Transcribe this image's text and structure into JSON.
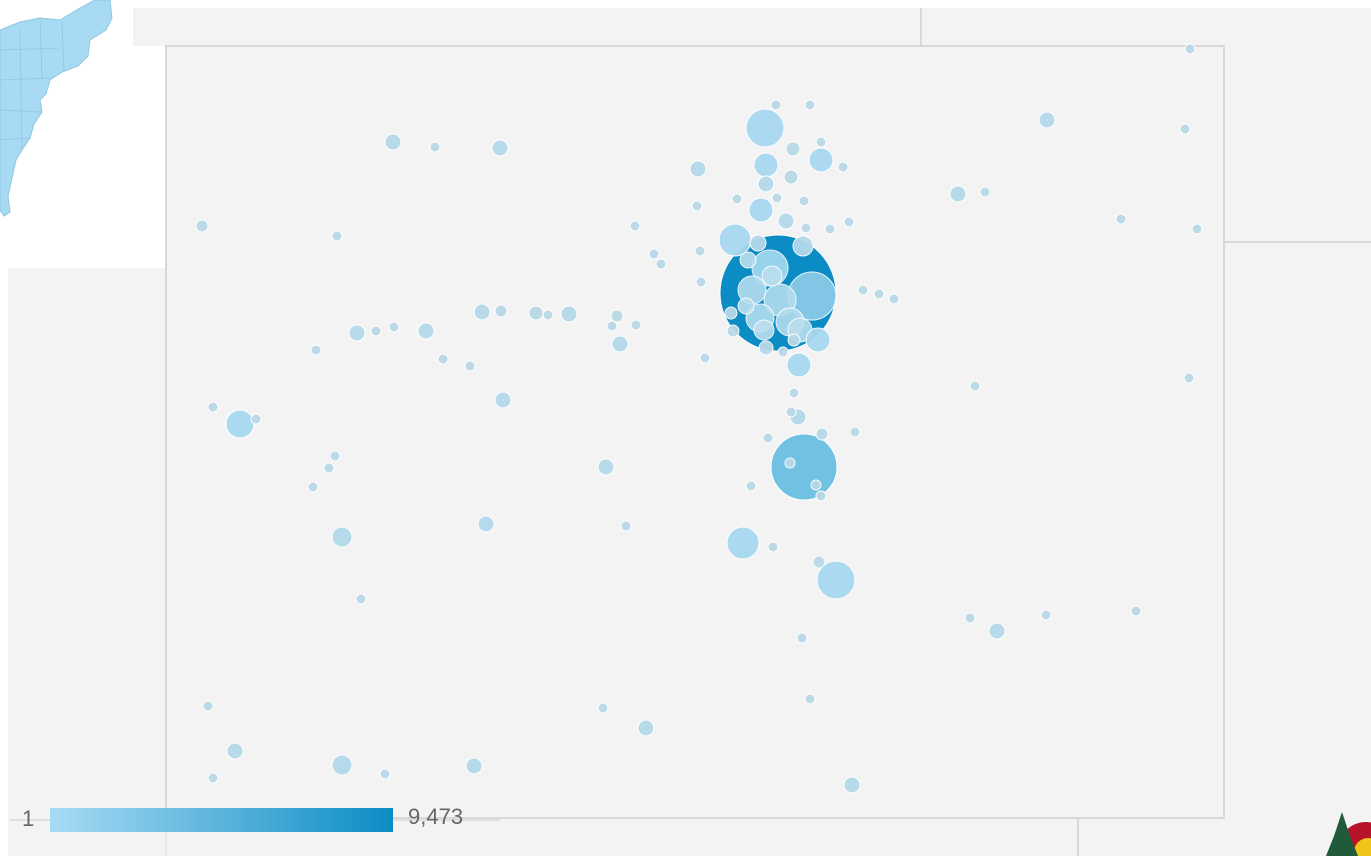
{
  "map": {
    "region": "Colorado",
    "markers": "circles",
    "color_min": "#a8dbf3",
    "color_max": "#0c8cc4",
    "land_color": "#f3f3f4",
    "border_color": "#d8d8d8",
    "inset_fill": "#a8dbf3"
  },
  "legend": {
    "min_label": "1",
    "max_label": "9,473",
    "min_value": 1,
    "max_value": 9473
  },
  "logo": {
    "icon": "tree-logo-icon",
    "primary_color": "#1f5a3a",
    "accent_color": "#b7142a"
  }
}
